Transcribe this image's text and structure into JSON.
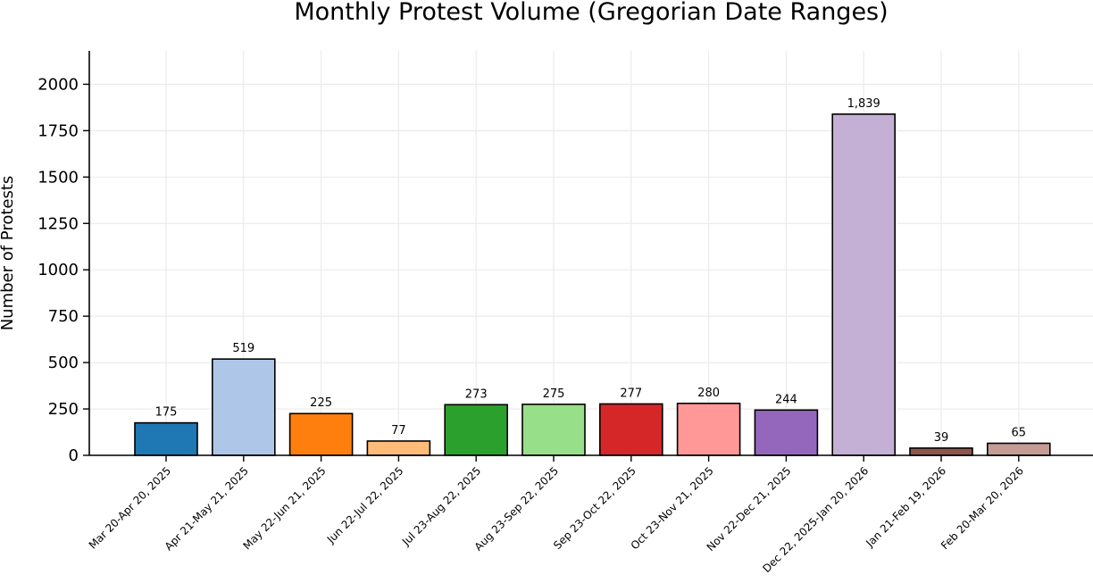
{
  "chart_data": {
    "type": "bar",
    "title": "Monthly Protest Volume (Gregorian Date Ranges)",
    "xlabel": "",
    "ylabel": "Number of Protests",
    "ylim": [
      0,
      2180
    ],
    "yticks": [
      0,
      250,
      500,
      750,
      1000,
      1250,
      1500,
      1750,
      2000
    ],
    "grid": true,
    "categories": [
      "Mar 20-Apr 20, 2025",
      "Apr 21-May 21, 2025",
      "May 22-Jun 21, 2025",
      "Jun 22-Jul 22, 2025",
      "Jul 23-Aug 22, 2025",
      "Aug 23-Sep 22, 2025",
      "Sep 23-Oct 22, 2025",
      "Oct 23-Nov 21, 2025",
      "Nov 22-Dec 21, 2025",
      "Dec 22, 2025-Jan 20, 2026",
      "Jan 21-Feb 19, 2026",
      "Feb 20-Mar 20, 2026"
    ],
    "values": [
      175,
      519,
      225,
      77,
      273,
      275,
      277,
      280,
      244,
      1839,
      39,
      65
    ],
    "value_labels": [
      "175",
      "519",
      "225",
      "77",
      "273",
      "275",
      "277",
      "280",
      "244",
      "1,839",
      "39",
      "65"
    ],
    "colors": [
      "#1f77b4",
      "#aec7e8",
      "#ff7f0e",
      "#ffbb78",
      "#2ca02c",
      "#98df8a",
      "#d62728",
      "#ff9896",
      "#9467bd",
      "#c5b0d5",
      "#8c564b",
      "#c49c94"
    ]
  }
}
